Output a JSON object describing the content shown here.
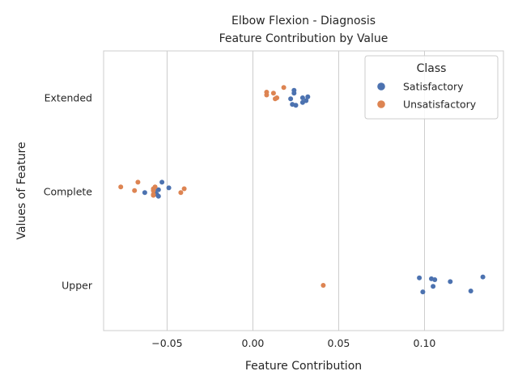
{
  "chart_data": {
    "type": "scatter",
    "title": "Elbow Flexion - Diagnosis",
    "subtitle": "Feature Contribution by Value",
    "xlabel": "Feature Contribution",
    "ylabel": "Values of Feature",
    "xlim": [
      -0.087,
      0.146
    ],
    "x_ticks": [
      "−0.05",
      "0.00",
      "0.05",
      "0.10"
    ],
    "x_tick_values": [
      -0.05,
      0.0,
      0.05,
      0.1
    ],
    "grid": "vertical",
    "categories": [
      "Extended",
      "Complete",
      "Upper"
    ],
    "legend": {
      "title": "Class",
      "placement": "top-right"
    },
    "series": [
      {
        "name": "Satisfactory",
        "color": "#4c72b0",
        "points": [
          {
            "category": "Extended",
            "x": 0.024,
            "jitter": -0.08
          },
          {
            "category": "Extended",
            "x": 0.024,
            "jitter": -0.05
          },
          {
            "category": "Extended",
            "x": 0.029,
            "jitter": 0.0
          },
          {
            "category": "Extended",
            "x": 0.032,
            "jitter": -0.01
          },
          {
            "category": "Extended",
            "x": 0.022,
            "jitter": 0.01
          },
          {
            "category": "Extended",
            "x": 0.031,
            "jitter": 0.03
          },
          {
            "category": "Extended",
            "x": 0.029,
            "jitter": 0.05
          },
          {
            "category": "Extended",
            "x": 0.023,
            "jitter": 0.07
          },
          {
            "category": "Extended",
            "x": 0.025,
            "jitter": 0.08
          },
          {
            "category": "Complete",
            "x": -0.053,
            "jitter": -0.1
          },
          {
            "category": "Complete",
            "x": -0.049,
            "jitter": -0.04
          },
          {
            "category": "Complete",
            "x": -0.055,
            "jitter": -0.02
          },
          {
            "category": "Complete",
            "x": -0.057,
            "jitter": 0.0
          },
          {
            "category": "Complete",
            "x": -0.063,
            "jitter": 0.01
          },
          {
            "category": "Complete",
            "x": -0.056,
            "jitter": 0.03
          },
          {
            "category": "Complete",
            "x": -0.055,
            "jitter": 0.05
          },
          {
            "category": "Upper",
            "x": 0.134,
            "jitter": -0.09
          },
          {
            "category": "Upper",
            "x": 0.097,
            "jitter": -0.08
          },
          {
            "category": "Upper",
            "x": 0.104,
            "jitter": -0.07
          },
          {
            "category": "Upper",
            "x": 0.106,
            "jitter": -0.06
          },
          {
            "category": "Upper",
            "x": 0.115,
            "jitter": -0.04
          },
          {
            "category": "Upper",
            "x": 0.105,
            "jitter": 0.01
          },
          {
            "category": "Upper",
            "x": 0.127,
            "jitter": 0.06
          },
          {
            "category": "Upper",
            "x": 0.099,
            "jitter": 0.07
          }
        ]
      },
      {
        "name": "Unsatisfactory",
        "color": "#dd8452",
        "points": [
          {
            "category": "Extended",
            "x": 0.018,
            "jitter": -0.11
          },
          {
            "category": "Extended",
            "x": 0.008,
            "jitter": -0.06
          },
          {
            "category": "Extended",
            "x": 0.012,
            "jitter": -0.05
          },
          {
            "category": "Extended",
            "x": 0.008,
            "jitter": -0.03
          },
          {
            "category": "Extended",
            "x": 0.014,
            "jitter": 0.0
          },
          {
            "category": "Extended",
            "x": 0.013,
            "jitter": 0.01
          },
          {
            "category": "Complete",
            "x": -0.067,
            "jitter": -0.1
          },
          {
            "category": "Complete",
            "x": -0.077,
            "jitter": -0.05
          },
          {
            "category": "Complete",
            "x": -0.057,
            "jitter": -0.05
          },
          {
            "category": "Complete",
            "x": -0.058,
            "jitter": -0.03
          },
          {
            "category": "Complete",
            "x": -0.04,
            "jitter": -0.03
          },
          {
            "category": "Complete",
            "x": -0.069,
            "jitter": -0.01
          },
          {
            "category": "Complete",
            "x": -0.058,
            "jitter": -0.01
          },
          {
            "category": "Complete",
            "x": -0.042,
            "jitter": 0.01
          },
          {
            "category": "Complete",
            "x": -0.058,
            "jitter": 0.03
          },
          {
            "category": "Complete",
            "x": -0.058,
            "jitter": 0.04
          },
          {
            "category": "Upper",
            "x": 0.041,
            "jitter": 0.0
          }
        ]
      }
    ]
  }
}
